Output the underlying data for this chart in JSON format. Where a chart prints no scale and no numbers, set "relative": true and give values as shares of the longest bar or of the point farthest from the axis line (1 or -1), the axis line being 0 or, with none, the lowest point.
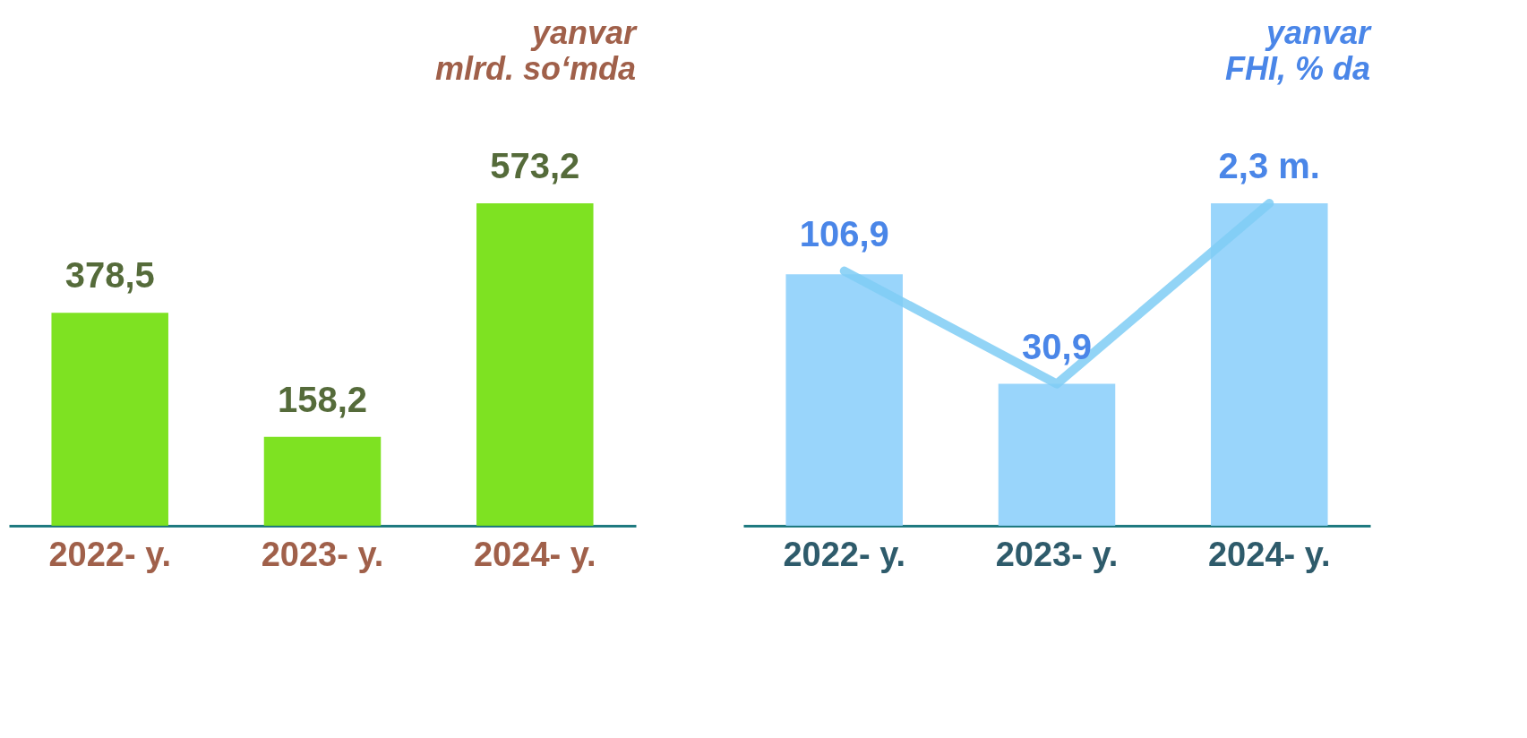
{
  "chart_data": [
    {
      "type": "bar",
      "title": "yanvar\nmlrd. so‘mda",
      "categories": [
        "2022- y.",
        "2023- y.",
        "2024- y."
      ],
      "values": [
        378.5,
        158.2,
        573.2
      ],
      "tick_labels": "x",
      "color": "#77e016",
      "value_labels": [
        "378,5",
        "158,2",
        "573,2"
      ]
    },
    {
      "type": "bar",
      "relative": true,
      "title": "yanvar\nFHI, % da",
      "categories": [
        "2022- y.",
        "2023- y.",
        "2024- y."
      ],
      "series": [
        {
          "type": "bar",
          "color": "#93d3fb",
          "values": [
            0.78,
            0.44,
            1
          ]
        },
        {
          "type": "line",
          "color": "#7fcdf5",
          "values": [
            0.79,
            0.44,
            1
          ]
        }
      ],
      "value_labels": [
        "106,9",
        "30,9",
        "2,3 m."
      ]
    }
  ]
}
